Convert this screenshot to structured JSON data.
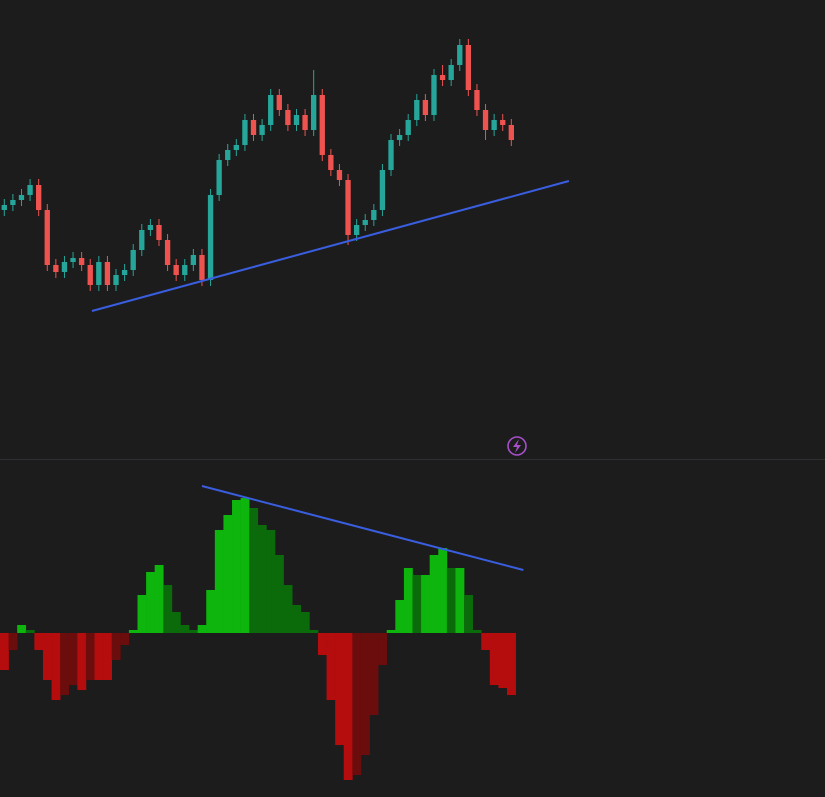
{
  "chart_data": [
    {
      "type": "candlestick",
      "xlim": [
        -0.5,
        95.5
      ],
      "ylim": [
        0,
        450
      ],
      "up_color": "#26a69a",
      "down_color": "#ef5350",
      "open": [
        240,
        245,
        250,
        255,
        265,
        240,
        185,
        178,
        188,
        192,
        185,
        165,
        188,
        165,
        175,
        180,
        200,
        220,
        225,
        210,
        185,
        175,
        185,
        195,
        170,
        255,
        290,
        300,
        305,
        330,
        315,
        325,
        355,
        340,
        325,
        335,
        320,
        355,
        295,
        280,
        270,
        215,
        225,
        230,
        240,
        280,
        310,
        315,
        330,
        350,
        335,
        375,
        370,
        385,
        405,
        360,
        340,
        320,
        330,
        325
      ],
      "high": [
        251,
        256,
        261,
        271,
        271,
        246,
        191,
        194,
        198,
        198,
        191,
        194,
        194,
        181,
        186,
        206,
        226,
        231,
        231,
        216,
        191,
        191,
        201,
        201,
        261,
        296,
        306,
        311,
        336,
        336,
        331,
        361,
        361,
        346,
        341,
        341,
        380,
        361,
        301,
        286,
        276,
        231,
        236,
        246,
        286,
        316,
        321,
        336,
        356,
        356,
        381,
        385,
        391,
        411,
        411,
        366,
        346,
        336,
        336,
        331
      ],
      "low": [
        234,
        239,
        244,
        249,
        234,
        179,
        172,
        172,
        182,
        179,
        159,
        159,
        159,
        159,
        169,
        174,
        194,
        214,
        204,
        179,
        169,
        169,
        179,
        164,
        164,
        249,
        284,
        294,
        299,
        309,
        309,
        319,
        334,
        319,
        319,
        314,
        314,
        289,
        274,
        264,
        205,
        209,
        219,
        224,
        234,
        274,
        304,
        309,
        324,
        329,
        329,
        364,
        364,
        379,
        354,
        334,
        310,
        314,
        319,
        304
      ],
      "close": [
        245,
        250,
        255,
        265,
        240,
        185,
        178,
        188,
        192,
        185,
        165,
        188,
        165,
        175,
        180,
        200,
        220,
        225,
        210,
        185,
        175,
        185,
        195,
        170,
        255,
        290,
        300,
        305,
        330,
        315,
        325,
        355,
        340,
        325,
        335,
        320,
        355,
        295,
        280,
        270,
        215,
        225,
        230,
        240,
        280,
        310,
        315,
        330,
        350,
        335,
        375,
        370,
        385,
        405,
        360,
        340,
        320,
        330,
        325,
        310
      ],
      "lines": [
        {
          "x": [
            10.2,
            65.7
          ],
          "values": [
            139,
            269
          ],
          "color": "#3a5ee0"
        }
      ]
    },
    {
      "type": "histogram-oscillator",
      "xlim": [
        -0.5,
        95.5
      ],
      "ylim": [
        -164,
        173
      ],
      "colors": {
        "up_rising": "#0db50d",
        "up_falling": "#0b6b0b",
        "down_falling": "#b50d0d",
        "down_rising": "#6b0d0d"
      },
      "values": [
        -37,
        -17,
        8,
        3,
        -17,
        -47,
        -67,
        -62,
        -52,
        -57,
        -47,
        -47,
        -47,
        -27,
        -12,
        3,
        38,
        61,
        68,
        48,
        21,
        8,
        3,
        8,
        43,
        103,
        118,
        133,
        135,
        125,
        108,
        103,
        78,
        48,
        28,
        21,
        3,
        -22,
        -67,
        -112,
        -147,
        -142,
        -122,
        -82,
        -32,
        3,
        33,
        65,
        58,
        58,
        78,
        85,
        65,
        65,
        38,
        3,
        -17,
        -52,
        -55,
        -62
      ],
      "lines": [
        {
          "x": [
            23.0,
            60.4
          ],
          "values": [
            147,
            63
          ],
          "color": "#3a5ee0"
        }
      ]
    }
  ]
}
